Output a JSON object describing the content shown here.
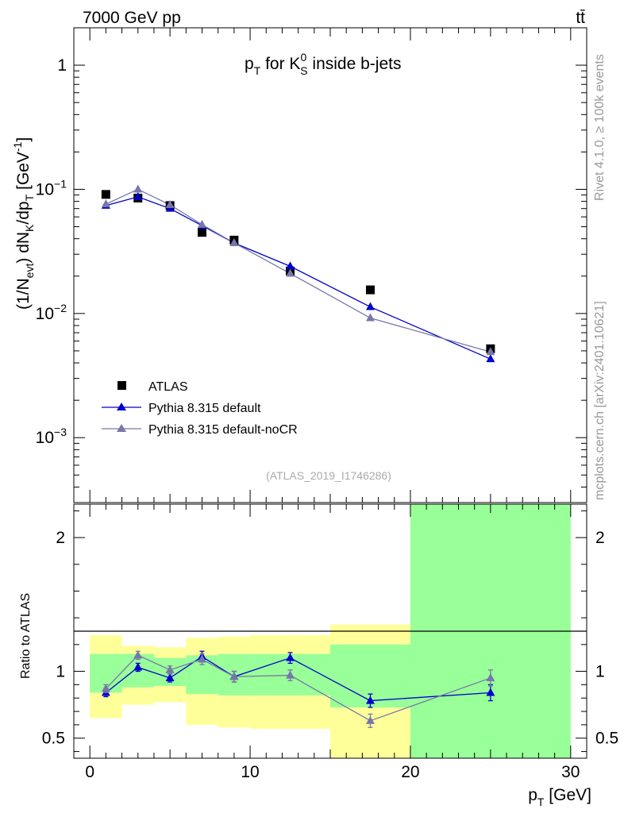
{
  "header": {
    "energy_label": "7000 GeV pp",
    "process_label": "tt̄"
  },
  "side_labels": {
    "rivet": "Rivet 4.1.0, ≥ 100k events",
    "mcplots": "mcplots.cern.ch [arXiv:2401.10621]"
  },
  "chart_data": [
    {
      "type": "scatter",
      "title": "pT for KS0 inside b-jets",
      "analysis_tag": "(ATLAS_2019_I1746286)",
      "xlabel": "pT [GeV]",
      "ylabel": "(1/Nevt) dNK/dpT [GeV-1]",
      "yscale": "log",
      "xlim": [
        -1,
        31
      ],
      "ylim": [
        0.0003,
        2.0
      ],
      "y_ticks": [
        0.001,
        0.01,
        0.1,
        1
      ],
      "y_tick_labels": [
        "10^-3",
        "10^-2",
        "10^-1",
        "1"
      ],
      "legend_position": "bottom-left",
      "series": [
        {
          "name": "ATLAS",
          "color": "#000000",
          "marker": "square",
          "x": [
            1,
            3,
            5,
            7,
            9,
            12.5,
            17.5,
            25
          ],
          "y": [
            0.091,
            0.085,
            0.074,
            0.045,
            0.039,
            0.022,
            0.0155,
            0.0052
          ]
        },
        {
          "name": "Pythia 8.315 default",
          "color": "#0000cc",
          "marker": "triangle",
          "x": [
            1,
            3,
            5,
            7,
            9,
            12.5,
            17.5,
            25
          ],
          "y": [
            0.074,
            0.087,
            0.07,
            0.051,
            0.037,
            0.024,
            0.0113,
            0.0043
          ]
        },
        {
          "name": "Pythia 8.315 default-noCR",
          "color": "#7777aa",
          "marker": "triangle",
          "x": [
            1,
            3,
            5,
            7,
            9,
            12.5,
            17.5,
            25
          ],
          "y": [
            0.076,
            0.1,
            0.075,
            0.052,
            0.037,
            0.021,
            0.0092,
            0.0049
          ]
        }
      ]
    },
    {
      "type": "scatter",
      "title": "",
      "xlabel": "pT [GeV]",
      "ylabel": "Ratio to ATLAS",
      "xlim": [
        -1,
        31
      ],
      "ylim": [
        0.35,
        2.25
      ],
      "x_ticks": [
        0,
        10,
        20,
        30
      ],
      "x_tick_labels": [
        "0",
        "10",
        "20",
        "30"
      ],
      "y_ticks": [
        0.5,
        1,
        2
      ],
      "y_tick_labels": [
        "0.5",
        "1",
        "2"
      ],
      "uncertainty_bands": {
        "bins": [
          [
            0,
            2
          ],
          [
            2,
            4
          ],
          [
            4,
            6
          ],
          [
            6,
            8
          ],
          [
            8,
            10
          ],
          [
            10,
            15
          ],
          [
            15,
            20
          ],
          [
            20,
            30
          ]
        ],
        "stat_low": [
          0.84,
          0.88,
          0.89,
          0.83,
          0.82,
          0.82,
          0.73,
          0.35
        ],
        "stat_high": [
          1.13,
          1.13,
          1.1,
          1.12,
          1.13,
          1.13,
          1.2,
          2.25
        ],
        "total_low": [
          0.65,
          0.75,
          0.77,
          0.6,
          0.58,
          0.57,
          0.35,
          0.35
        ],
        "total_high": [
          1.27,
          1.19,
          1.18,
          1.25,
          1.26,
          1.27,
          1.35,
          2.25
        ],
        "stat_color": "#99ff99",
        "total_color": "#ffff99"
      },
      "series": [
        {
          "name": "Pythia 8.315 default",
          "color": "#0000cc",
          "x": [
            1,
            3,
            5,
            7,
            9,
            12.5,
            17.5,
            25
          ],
          "y": [
            0.84,
            1.03,
            0.95,
            1.11,
            0.96,
            1.1,
            0.78,
            0.84
          ],
          "err": [
            0.03,
            0.03,
            0.03,
            0.04,
            0.04,
            0.04,
            0.05,
            0.06
          ]
        },
        {
          "name": "Pythia 8.315 default-noCR",
          "color": "#7777aa",
          "x": [
            1,
            3,
            5,
            7,
            9,
            12.5,
            17.5,
            25
          ],
          "y": [
            0.87,
            1.12,
            1.01,
            1.09,
            0.96,
            0.97,
            0.63,
            0.95
          ],
          "err": [
            0.03,
            0.03,
            0.03,
            0.04,
            0.04,
            0.04,
            0.05,
            0.06
          ]
        }
      ]
    }
  ]
}
